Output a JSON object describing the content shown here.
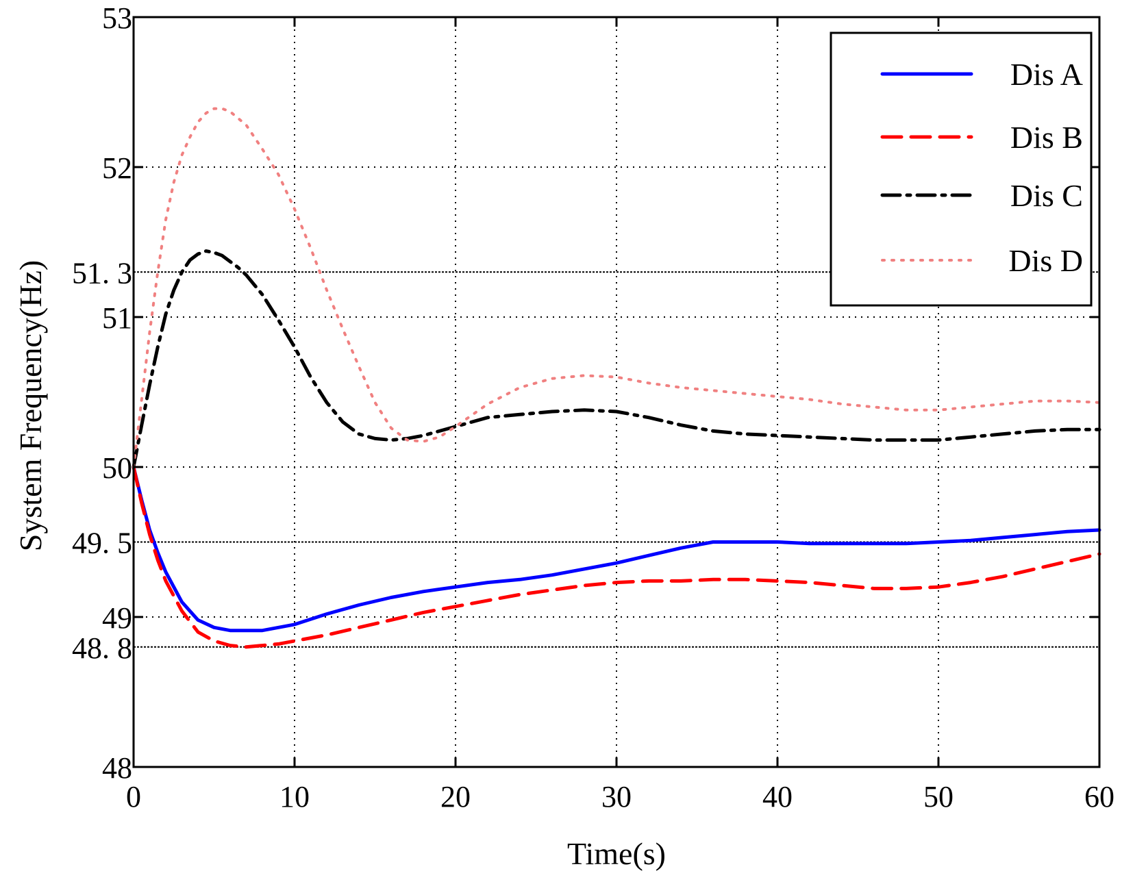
{
  "chart_data": {
    "type": "line",
    "title": "",
    "xlabel": "Time(s)",
    "ylabel": "System Frequency(Hz)",
    "xlim": [
      0,
      60
    ],
    "ylim": [
      48,
      53
    ],
    "grid": true,
    "legend_position": "top-right",
    "x_ticks": [
      0,
      10,
      20,
      30,
      40,
      50,
      60
    ],
    "x_tick_labels": [
      "0",
      "10",
      "20",
      "30",
      "40",
      "50",
      "60"
    ],
    "y_ticks": [
      48,
      49,
      50,
      51,
      52,
      53
    ],
    "y_tick_labels": [
      "48",
      "49",
      "50",
      "51",
      "52",
      "53"
    ],
    "reference_lines": [
      {
        "value": 51.3,
        "label": "51. 3"
      },
      {
        "value": 49.5,
        "label": "49. 5"
      },
      {
        "value": 48.8,
        "label": "48. 8"
      }
    ],
    "series": [
      {
        "name": "Dis A",
        "color": "#0000ff",
        "style": "solid",
        "x": [
          0,
          0.5,
          1,
          1.5,
          2,
          3,
          4,
          5,
          6,
          7,
          8,
          9,
          10,
          12,
          14,
          16,
          18,
          20,
          22,
          24,
          26,
          28,
          30,
          32,
          34,
          36,
          38,
          40,
          42,
          44,
          46,
          48,
          50,
          52,
          54,
          56,
          58,
          60
        ],
        "values": [
          50,
          49.78,
          49.58,
          49.43,
          49.3,
          49.1,
          48.98,
          48.93,
          48.91,
          48.91,
          48.91,
          48.93,
          48.95,
          49.02,
          49.08,
          49.13,
          49.17,
          49.2,
          49.23,
          49.25,
          49.28,
          49.32,
          49.36,
          49.41,
          49.46,
          49.5,
          49.5,
          49.5,
          49.49,
          49.49,
          49.49,
          49.49,
          49.5,
          49.51,
          49.53,
          49.55,
          49.57,
          49.58
        ]
      },
      {
        "name": "Dis B",
        "color": "#ff0000",
        "style": "dashed",
        "x": [
          0,
          0.5,
          1,
          1.5,
          2,
          3,
          4,
          5,
          6,
          7,
          8,
          9,
          10,
          12,
          14,
          16,
          18,
          20,
          22,
          24,
          26,
          28,
          30,
          32,
          34,
          36,
          38,
          40,
          42,
          44,
          46,
          48,
          50,
          52,
          54,
          56,
          58,
          60
        ],
        "values": [
          50,
          49.76,
          49.55,
          49.38,
          49.24,
          49.04,
          48.9,
          48.84,
          48.81,
          48.8,
          48.81,
          48.82,
          48.84,
          48.88,
          48.93,
          48.98,
          49.03,
          49.07,
          49.11,
          49.15,
          49.18,
          49.21,
          49.23,
          49.24,
          49.24,
          49.25,
          49.25,
          49.24,
          49.23,
          49.21,
          49.19,
          49.19,
          49.2,
          49.23,
          49.27,
          49.32,
          49.37,
          49.42
        ]
      },
      {
        "name": "Dis C",
        "color": "#000000",
        "style": "dashdot",
        "x": [
          0,
          0.5,
          1,
          1.5,
          2,
          2.5,
          3,
          3.5,
          4,
          4.5,
          5,
          5.5,
          6,
          6.5,
          7,
          8,
          9,
          10,
          11,
          12,
          13,
          14,
          15,
          16,
          17,
          18,
          20,
          22,
          24,
          26,
          28,
          30,
          32,
          34,
          36,
          38,
          40,
          42,
          44,
          46,
          48,
          50,
          52,
          54,
          56,
          58,
          60
        ],
        "values": [
          50,
          50.28,
          50.55,
          50.8,
          51.02,
          51.18,
          51.3,
          51.38,
          51.42,
          51.44,
          51.43,
          51.41,
          51.37,
          51.33,
          51.28,
          51.15,
          50.98,
          50.8,
          50.6,
          50.43,
          50.3,
          50.22,
          50.19,
          50.18,
          50.19,
          50.21,
          50.27,
          50.33,
          50.35,
          50.37,
          50.38,
          50.37,
          50.33,
          50.28,
          50.24,
          50.22,
          50.21,
          50.2,
          50.19,
          50.18,
          50.18,
          50.18,
          50.2,
          50.22,
          50.24,
          50.25,
          50.25
        ]
      },
      {
        "name": "Dis D",
        "color": "#f08080",
        "style": "dotted",
        "x": [
          0,
          0.5,
          1,
          1.5,
          2,
          2.5,
          3,
          3.5,
          4,
          4.5,
          5,
          5.5,
          6,
          7,
          8,
          9,
          10,
          11,
          12,
          13,
          14,
          15,
          16,
          17,
          18,
          19,
          20,
          22,
          24,
          26,
          28,
          30,
          32,
          34,
          36,
          38,
          40,
          42,
          44,
          46,
          48,
          50,
          52,
          54,
          56,
          58,
          60
        ],
        "values": [
          50,
          50.45,
          50.9,
          51.3,
          51.65,
          51.9,
          52.08,
          52.2,
          52.3,
          52.36,
          52.39,
          52.39,
          52.37,
          52.28,
          52.12,
          51.95,
          51.72,
          51.46,
          51.18,
          50.92,
          50.67,
          50.43,
          50.26,
          50.18,
          50.17,
          50.2,
          50.27,
          50.42,
          50.53,
          50.59,
          50.61,
          50.6,
          50.56,
          50.53,
          50.51,
          50.49,
          50.47,
          50.45,
          50.42,
          50.4,
          50.38,
          50.38,
          50.4,
          50.42,
          50.44,
          50.44,
          50.43
        ]
      }
    ]
  }
}
